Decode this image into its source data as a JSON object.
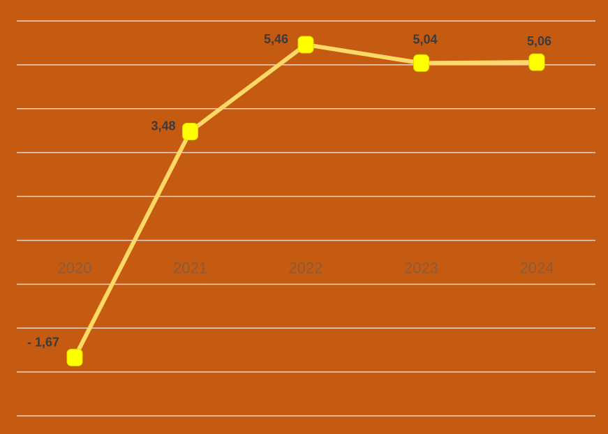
{
  "chart_data": {
    "type": "line",
    "categories": [
      "2020",
      "2021",
      "2022",
      "2023",
      "2024"
    ],
    "values": [
      -1.67,
      3.48,
      5.46,
      5.04,
      5.06
    ],
    "data_labels": [
      "-  1,67",
      "3,48",
      "5,46",
      "5,04",
      "5,06"
    ],
    "title": "",
    "xlabel": "",
    "ylabel": "",
    "ylim": [
      -3,
      6
    ],
    "grid": true,
    "legend": "none",
    "colors": {
      "background": "#C55A11",
      "line": "#FFD966",
      "marker": "#FFFF00",
      "gridline": "#F2D5C4",
      "tick_label": "#8a5a3a",
      "data_label": "#3b3b3b"
    }
  }
}
